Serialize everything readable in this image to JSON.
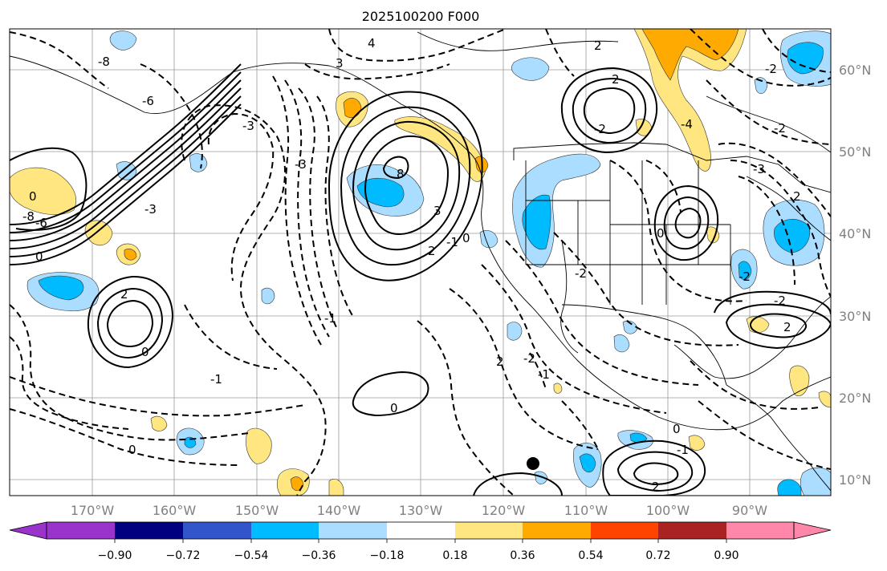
{
  "title": "2025100200 F000",
  "map": {
    "lon_labels": [
      "170°W",
      "160°W",
      "150°W",
      "140°W",
      "130°W",
      "120°W",
      "110°W",
      "100°W",
      "90°W"
    ],
    "lat_labels": [
      "60°N",
      "50°N",
      "40°N",
      "30°N",
      "20°N",
      "10°N"
    ],
    "gridlines": true
  },
  "colorbar": {
    "ticks": [
      "−0.90",
      "−0.72",
      "−0.54",
      "−0.36",
      "−0.18",
      "0.18",
      "0.36",
      "0.54",
      "0.72",
      "0.90"
    ],
    "colors": [
      "#9933cc",
      "#000080",
      "#3355cc",
      "#00bbff",
      "#aaddff",
      "#ffffff",
      "#ffe680",
      "#ffaa00",
      "#ff4400",
      "#aa2222",
      "#ff88aa"
    ],
    "extend": "both"
  },
  "contour_labels": [
    "-8",
    "4",
    "3",
    "2",
    "-6",
    "2",
    "-2",
    "-3",
    "8",
    "-2",
    "-2",
    "-3",
    "-8",
    "-6",
    "0",
    "-3",
    "3",
    "2",
    "-1",
    "0",
    "2",
    "0",
    "-2",
    "0",
    "2",
    "-1",
    "0",
    "-1",
    "0",
    "0",
    "0",
    "2",
    "-1",
    "-2",
    "-1",
    "2",
    "-2",
    "2",
    "-4",
    "-3",
    "-2"
  ]
}
